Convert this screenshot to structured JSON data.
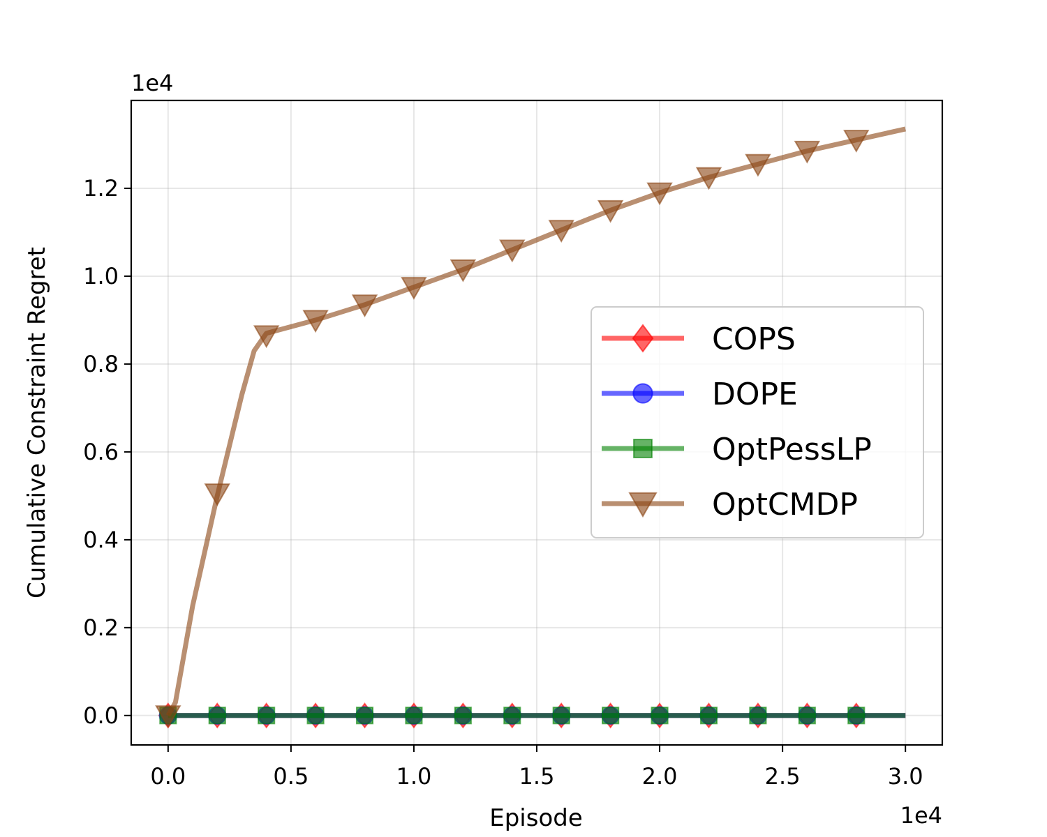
{
  "chart_data": {
    "type": "line",
    "xlabel": "Episode",
    "ylabel": "Cumulative Constraint Regret",
    "x_offset_label": "1e4",
    "y_offset_label": "1e4",
    "xlim": [
      -0.15,
      3.15
    ],
    "ylim": [
      -0.067,
      1.4
    ],
    "x_ticks": [
      0.0,
      0.5,
      1.0,
      1.5,
      2.0,
      2.5,
      3.0
    ],
    "x_tick_labels": [
      "0.0",
      "0.5",
      "1.0",
      "1.5",
      "2.0",
      "2.5",
      "3.0"
    ],
    "y_ticks": [
      0.0,
      0.2,
      0.4,
      0.6,
      0.8,
      1.0,
      1.2
    ],
    "y_tick_labels": [
      "0.0",
      "0.2",
      "0.4",
      "0.6",
      "0.8",
      "1.0",
      "1.2"
    ],
    "grid": true,
    "legend_position": "center-right",
    "series": [
      {
        "name": "COPS",
        "color": "#ff0000",
        "marker": "diamond",
        "x": [
          0.0,
          0.2,
          0.4,
          0.6,
          0.8,
          1.0,
          1.2,
          1.4,
          1.6,
          1.8,
          2.0,
          2.2,
          2.4,
          2.6,
          2.8,
          3.0
        ],
        "y": [
          0,
          0,
          0,
          0,
          0,
          0,
          0,
          0,
          0,
          0,
          0,
          0,
          0,
          0,
          0,
          0
        ],
        "marker_x": [
          0.0,
          0.2,
          0.4,
          0.6,
          0.8,
          1.0,
          1.2,
          1.4,
          1.6,
          1.8,
          2.0,
          2.2,
          2.4,
          2.6,
          2.8
        ],
        "marker_y": [
          0,
          0,
          0,
          0,
          0,
          0,
          0,
          0,
          0,
          0,
          0,
          0,
          0,
          0,
          0
        ]
      },
      {
        "name": "DOPE",
        "color": "#0000ff",
        "marker": "circle",
        "x": [
          0.0,
          0.2,
          0.4,
          0.6,
          0.8,
          1.0,
          1.2,
          1.4,
          1.6,
          1.8,
          2.0,
          2.2,
          2.4,
          2.6,
          2.8,
          3.0
        ],
        "y": [
          0,
          0,
          0,
          0,
          0,
          0,
          0,
          0,
          0,
          0,
          0,
          0,
          0,
          0,
          0,
          0
        ],
        "marker_x": [
          0.0,
          0.2,
          0.4,
          0.6,
          0.8,
          1.0,
          1.2,
          1.4,
          1.6,
          1.8,
          2.0,
          2.2,
          2.4,
          2.6,
          2.8
        ],
        "marker_y": [
          0,
          0,
          0,
          0,
          0,
          0,
          0,
          0,
          0,
          0,
          0,
          0,
          0,
          0,
          0
        ]
      },
      {
        "name": "OptPessLP",
        "color": "#008000",
        "marker": "square",
        "x": [
          0.0,
          0.2,
          0.4,
          0.6,
          0.8,
          1.0,
          1.2,
          1.4,
          1.6,
          1.8,
          2.0,
          2.2,
          2.4,
          2.6,
          2.8,
          3.0
        ],
        "y": [
          0,
          0,
          0,
          0,
          0,
          0,
          0,
          0,
          0,
          0,
          0,
          0,
          0,
          0,
          0,
          0
        ],
        "marker_x": [
          0.0,
          0.2,
          0.4,
          0.6,
          0.8,
          1.0,
          1.2,
          1.4,
          1.6,
          1.8,
          2.0,
          2.2,
          2.4,
          2.6,
          2.8
        ],
        "marker_y": [
          0,
          0,
          0,
          0,
          0,
          0,
          0,
          0,
          0,
          0,
          0,
          0,
          0,
          0,
          0
        ]
      },
      {
        "name": "OptCMDP",
        "color": "#8b4513",
        "marker": "triangle-down",
        "x": [
          0.0,
          0.03,
          0.1,
          0.2,
          0.3,
          0.35,
          0.4,
          0.5,
          0.6,
          0.8,
          1.0,
          1.2,
          1.4,
          1.6,
          1.8,
          2.0,
          2.2,
          2.4,
          2.6,
          2.8,
          3.0
        ],
        "y": [
          0.0,
          0.03,
          0.25,
          0.5,
          0.73,
          0.83,
          0.87,
          0.885,
          0.9,
          0.935,
          0.975,
          1.015,
          1.06,
          1.105,
          1.15,
          1.19,
          1.225,
          1.255,
          1.285,
          1.31,
          1.335
        ],
        "marker_x": [
          0.0,
          0.2,
          0.4,
          0.6,
          0.8,
          1.0,
          1.2,
          1.4,
          1.6,
          1.8,
          2.0,
          2.2,
          2.4,
          2.6,
          2.8
        ],
        "marker_y": [
          0.0,
          0.505,
          0.865,
          0.9,
          0.935,
          0.975,
          1.015,
          1.06,
          1.105,
          1.15,
          1.19,
          1.225,
          1.255,
          1.285,
          1.31
        ]
      }
    ]
  }
}
